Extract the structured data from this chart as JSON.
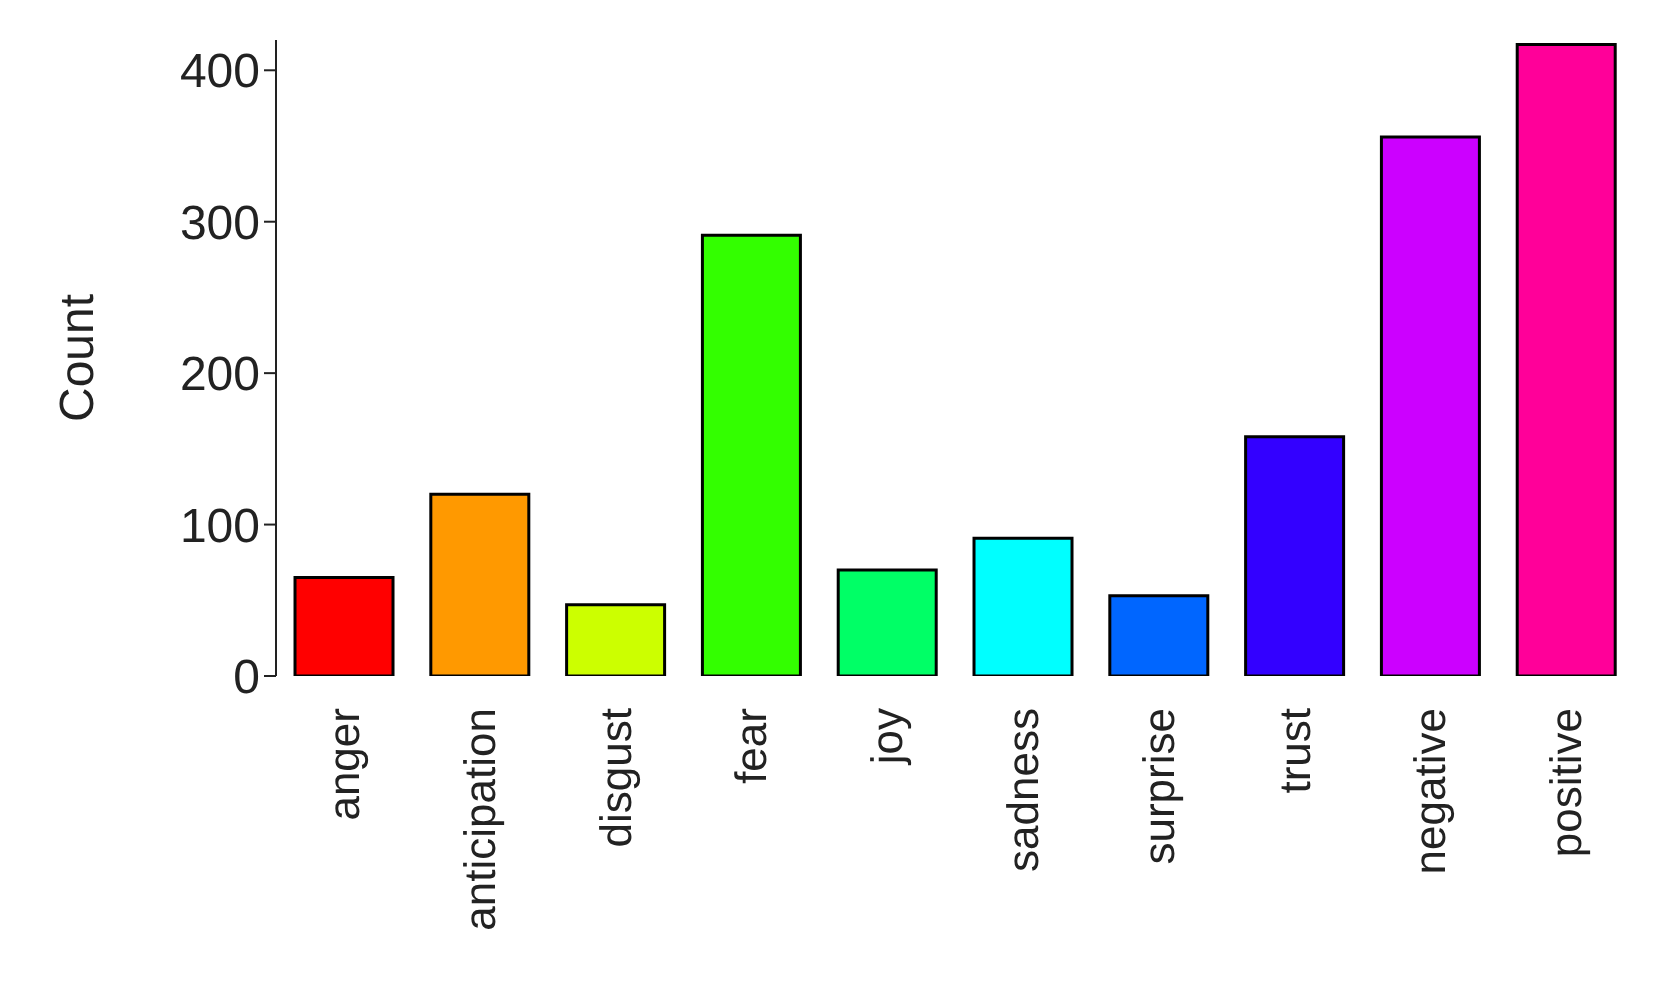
{
  "chart_data": {
    "type": "bar",
    "ylabel": "Count",
    "categories": [
      "anger",
      "anticipation",
      "disgust",
      "fear",
      "joy",
      "sadness",
      "surprise",
      "trust",
      "negative",
      "positive"
    ],
    "values": [
      65,
      120,
      47,
      291,
      70,
      91,
      53,
      158,
      356,
      417
    ],
    "colors": [
      "#ff0000",
      "#ff9900",
      "#ccff00",
      "#33ff00",
      "#00ff66",
      "#00ffff",
      "#0066ff",
      "#3300ff",
      "#cc00ff",
      "#ff0099"
    ],
    "ylim": [
      0,
      420
    ],
    "yticks": [
      0,
      100,
      200,
      300,
      400
    ],
    "grid": false,
    "legend": false
  }
}
